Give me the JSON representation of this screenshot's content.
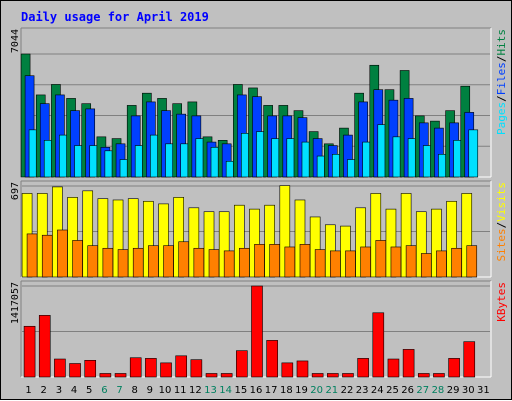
{
  "chart_data": {
    "type": "bar",
    "title": "Daily usage for April 2019",
    "categories": [
      "1",
      "2",
      "3",
      "4",
      "5",
      "6",
      "7",
      "8",
      "9",
      "10",
      "11",
      "12",
      "13",
      "14",
      "15",
      "16",
      "17",
      "18",
      "19",
      "20",
      "21",
      "22",
      "23",
      "24",
      "25",
      "26",
      "27",
      "28",
      "29",
      "30",
      "31"
    ],
    "weekend_days": [
      "6",
      "7",
      "13",
      "14",
      "20",
      "21",
      "27",
      "28"
    ],
    "panels": [
      {
        "id": "hits",
        "ymax_label": "7044",
        "ymax": 7044,
        "legend": [
          "Pages",
          "/",
          "Files",
          "/",
          "Hits"
        ],
        "series": [
          {
            "name": "Hits",
            "color": "#008040",
            "values": [
              7044,
              4700,
              5300,
              4500,
              4200,
              2300,
              2200,
              4100,
              4800,
              4500,
              4200,
              4300,
              2300,
              2100,
              5300,
              5100,
              4100,
              4100,
              3800,
              2600,
              1900,
              2800,
              4800,
              6400,
              5000,
              6100,
              3500,
              3200,
              3800,
              5200,
              null
            ]
          },
          {
            "name": "Files",
            "color": "#0040ff",
            "values": [
              5800,
              4200,
              4700,
              3800,
              3900,
              1700,
              1900,
              3500,
              4300,
              3800,
              3600,
              3500,
              2000,
              1900,
              4700,
              4600,
              3500,
              3500,
              3400,
              2200,
              1800,
              2400,
              4300,
              5000,
              4400,
              4500,
              3100,
              2800,
              3100,
              3700,
              null
            ]
          },
          {
            "name": "Pages",
            "color": "#00e0ff",
            "values": [
              2700,
              2100,
              2400,
              1800,
              1800,
              1500,
              1000,
              1800,
              2400,
              1900,
              1900,
              2200,
              1700,
              900,
              2500,
              2600,
              2200,
              2200,
              2000,
              1200,
              1300,
              1000,
              2000,
              3000,
              2300,
              2200,
              1800,
              1300,
              2100,
              2700,
              null
            ]
          }
        ]
      },
      {
        "id": "visits",
        "ymax_label": "697",
        "ymax": 697,
        "legend": [
          "Sites",
          "/",
          "Visits"
        ],
        "series": [
          {
            "name": "Visits",
            "color": "#ffff00",
            "values": [
              640,
              640,
              690,
              610,
              660,
              600,
              590,
              600,
              580,
              560,
              610,
              530,
              500,
              500,
              550,
              520,
              550,
              700,
              590,
              460,
              400,
              390,
              530,
              640,
              520,
              640,
              500,
              520,
              580,
              640,
              null
            ]
          },
          {
            "name": "Sites",
            "color": "#ff8000",
            "values": [
              330,
              320,
              360,
              280,
              240,
              220,
              210,
              220,
              240,
              240,
              270,
              220,
              210,
              200,
              220,
              250,
              250,
              230,
              250,
              210,
              200,
              200,
              230,
              280,
              230,
              240,
              180,
              200,
              220,
              240,
              null
            ]
          }
        ]
      },
      {
        "id": "kbytes",
        "ymax_label": "1417057",
        "ymax": 1417057,
        "legend": [
          "KBytes"
        ],
        "series": [
          {
            "name": "KBytes",
            "color": "#ff0000",
            "values": [
              790000,
              960000,
              280000,
              210000,
              260000,
              55000,
              55000,
              300000,
              290000,
              220000,
              330000,
              270000,
              55000,
              55000,
              410000,
              1417057,
              570000,
              220000,
              250000,
              55000,
              55000,
              55000,
              290000,
              1000000,
              280000,
              430000,
              55000,
              55000,
              290000,
              550000,
              null
            ]
          }
        ]
      }
    ]
  }
}
